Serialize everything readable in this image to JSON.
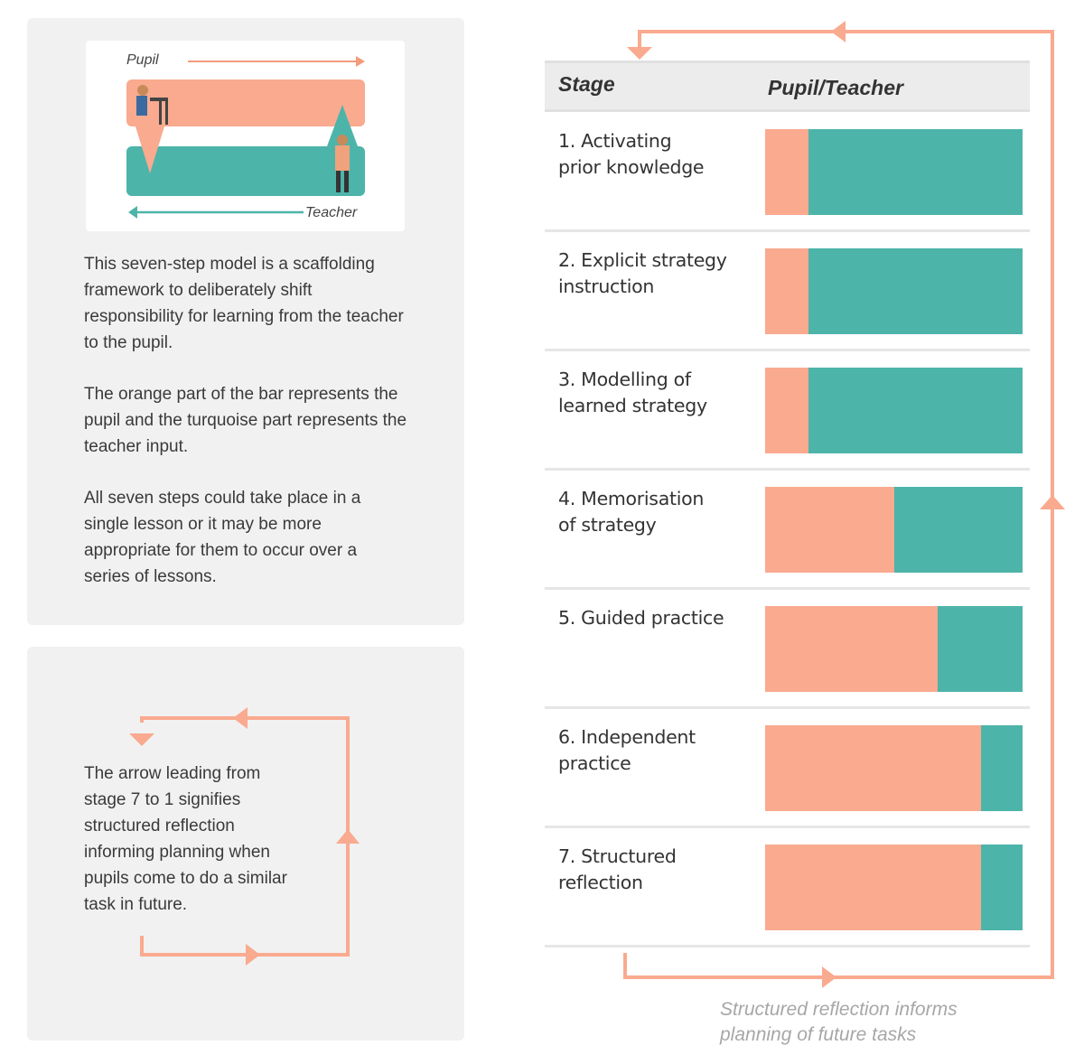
{
  "chart_data": {
    "type": "stacked-bar",
    "columns": [
      "Stage",
      "Pupil/Teacher"
    ],
    "categories": [
      "1. Activating\nprior knowledge",
      "2. Explicit strategy\ninstruction",
      "3. Modelling of\nlearned strategy",
      "4. Memorisation\nof strategy",
      "5. Guided practice",
      "6. Independent\npractice",
      "7. Structured\nreflection"
    ],
    "series": [
      {
        "name": "Pupil",
        "color": "#f9aa8f",
        "values": [
          17,
          17,
          17,
          50,
          67,
          84,
          84
        ]
      },
      {
        "name": "Teacher",
        "color": "#4db4a9",
        "values": [
          83,
          83,
          83,
          50,
          33,
          16,
          16
        ]
      }
    ],
    "xlim": [
      0,
      100
    ],
    "annotation": "Structured reflection informs planning of future tasks"
  },
  "panel": {
    "paragraphs": [
      "This seven-step model is a scaffolding framework to deliberately shift responsibility for learning from the teacher to the pupil.",
      "The orange part of the bar represents the pupil and the turquoise part represents the teacher input.",
      "All seven steps could take place in a single lesson or it may be more appropriate for them to occur over a series of lessons."
    ],
    "arrow_note": "The arrow leading from stage 7 to 1 signifies structured reflection informing planning when pupils come to do a similar task in future."
  }
}
